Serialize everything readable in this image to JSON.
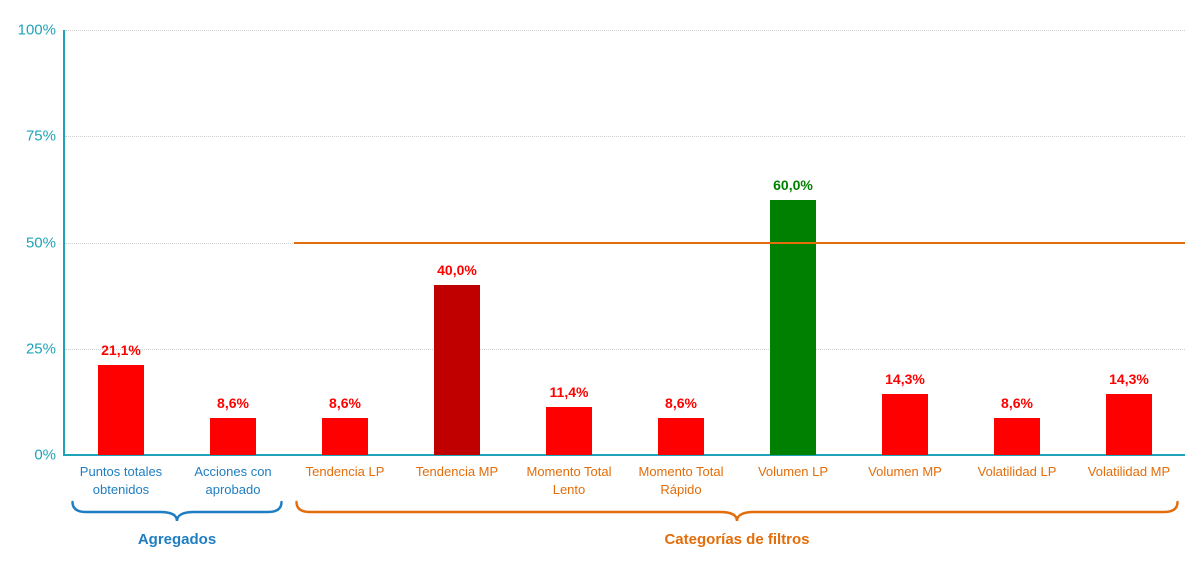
{
  "chart_data": {
    "type": "bar",
    "title": "",
    "y_axis": {
      "min": 0,
      "max": 100,
      "ticks": [
        0,
        25,
        50,
        75,
        100
      ],
      "tick_labels": [
        "0%",
        "25%",
        "50%",
        "75%",
        "100%"
      ],
      "color": "#1FA3B8"
    },
    "grid_color": "#CFCFCF",
    "grid_style": "dotted",
    "categories": [
      {
        "label": "Puntos totales obtenidos",
        "value": 21.1,
        "value_label": "21,1%",
        "bar_color": "#FF0000",
        "value_label_color": "#FF0000",
        "axis_label_color": "#1F7EC2"
      },
      {
        "label": "Acciones con aprobado",
        "value": 8.6,
        "value_label": "8,6%",
        "bar_color": "#FF0000",
        "value_label_color": "#FF0000",
        "axis_label_color": "#1F7EC2"
      },
      {
        "label": "Tendencia LP",
        "value": 8.6,
        "value_label": "8,6%",
        "bar_color": "#FF0000",
        "value_label_color": "#FF0000",
        "axis_label_color": "#E36D0A"
      },
      {
        "label": "Tendencia MP",
        "value": 40.0,
        "value_label": "40,0%",
        "bar_color": "#C00000",
        "value_label_color": "#FF0000",
        "axis_label_color": "#E36D0A"
      },
      {
        "label": "Momento Total Lento",
        "value": 11.4,
        "value_label": "11,4%",
        "bar_color": "#FF0000",
        "value_label_color": "#FF0000",
        "axis_label_color": "#E36D0A"
      },
      {
        "label": "Momento Total Rápido",
        "value": 8.6,
        "value_label": "8,6%",
        "bar_color": "#FF0000",
        "value_label_color": "#FF0000",
        "axis_label_color": "#E36D0A"
      },
      {
        "label": "Volumen LP",
        "value": 60.0,
        "value_label": "60,0%",
        "bar_color": "#008000",
        "value_label_color": "#008000",
        "axis_label_color": "#E36D0A"
      },
      {
        "label": "Volumen MP",
        "value": 14.3,
        "value_label": "14,3%",
        "bar_color": "#FF0000",
        "value_label_color": "#FF0000",
        "axis_label_color": "#E36D0A"
      },
      {
        "label": "Volatilidad LP",
        "value": 8.6,
        "value_label": "8,6%",
        "bar_color": "#FF0000",
        "value_label_color": "#FF0000",
        "axis_label_color": "#E36D0A"
      },
      {
        "label": "Volatilidad MP",
        "value": 14.3,
        "value_label": "14,3%",
        "bar_color": "#FF0000",
        "value_label_color": "#FF0000",
        "axis_label_color": "#E36D0A"
      }
    ],
    "reference_line": {
      "value": 50,
      "color": "#E36D0A",
      "start_category_index": 2
    },
    "groups": [
      {
        "label": "Agregados",
        "color": "#1F7EC2",
        "start_index": 0,
        "end_index": 1
      },
      {
        "label": "Categorías de filtros",
        "color": "#E36D0A",
        "start_index": 2,
        "end_index": 9
      }
    ],
    "legend": "none"
  }
}
